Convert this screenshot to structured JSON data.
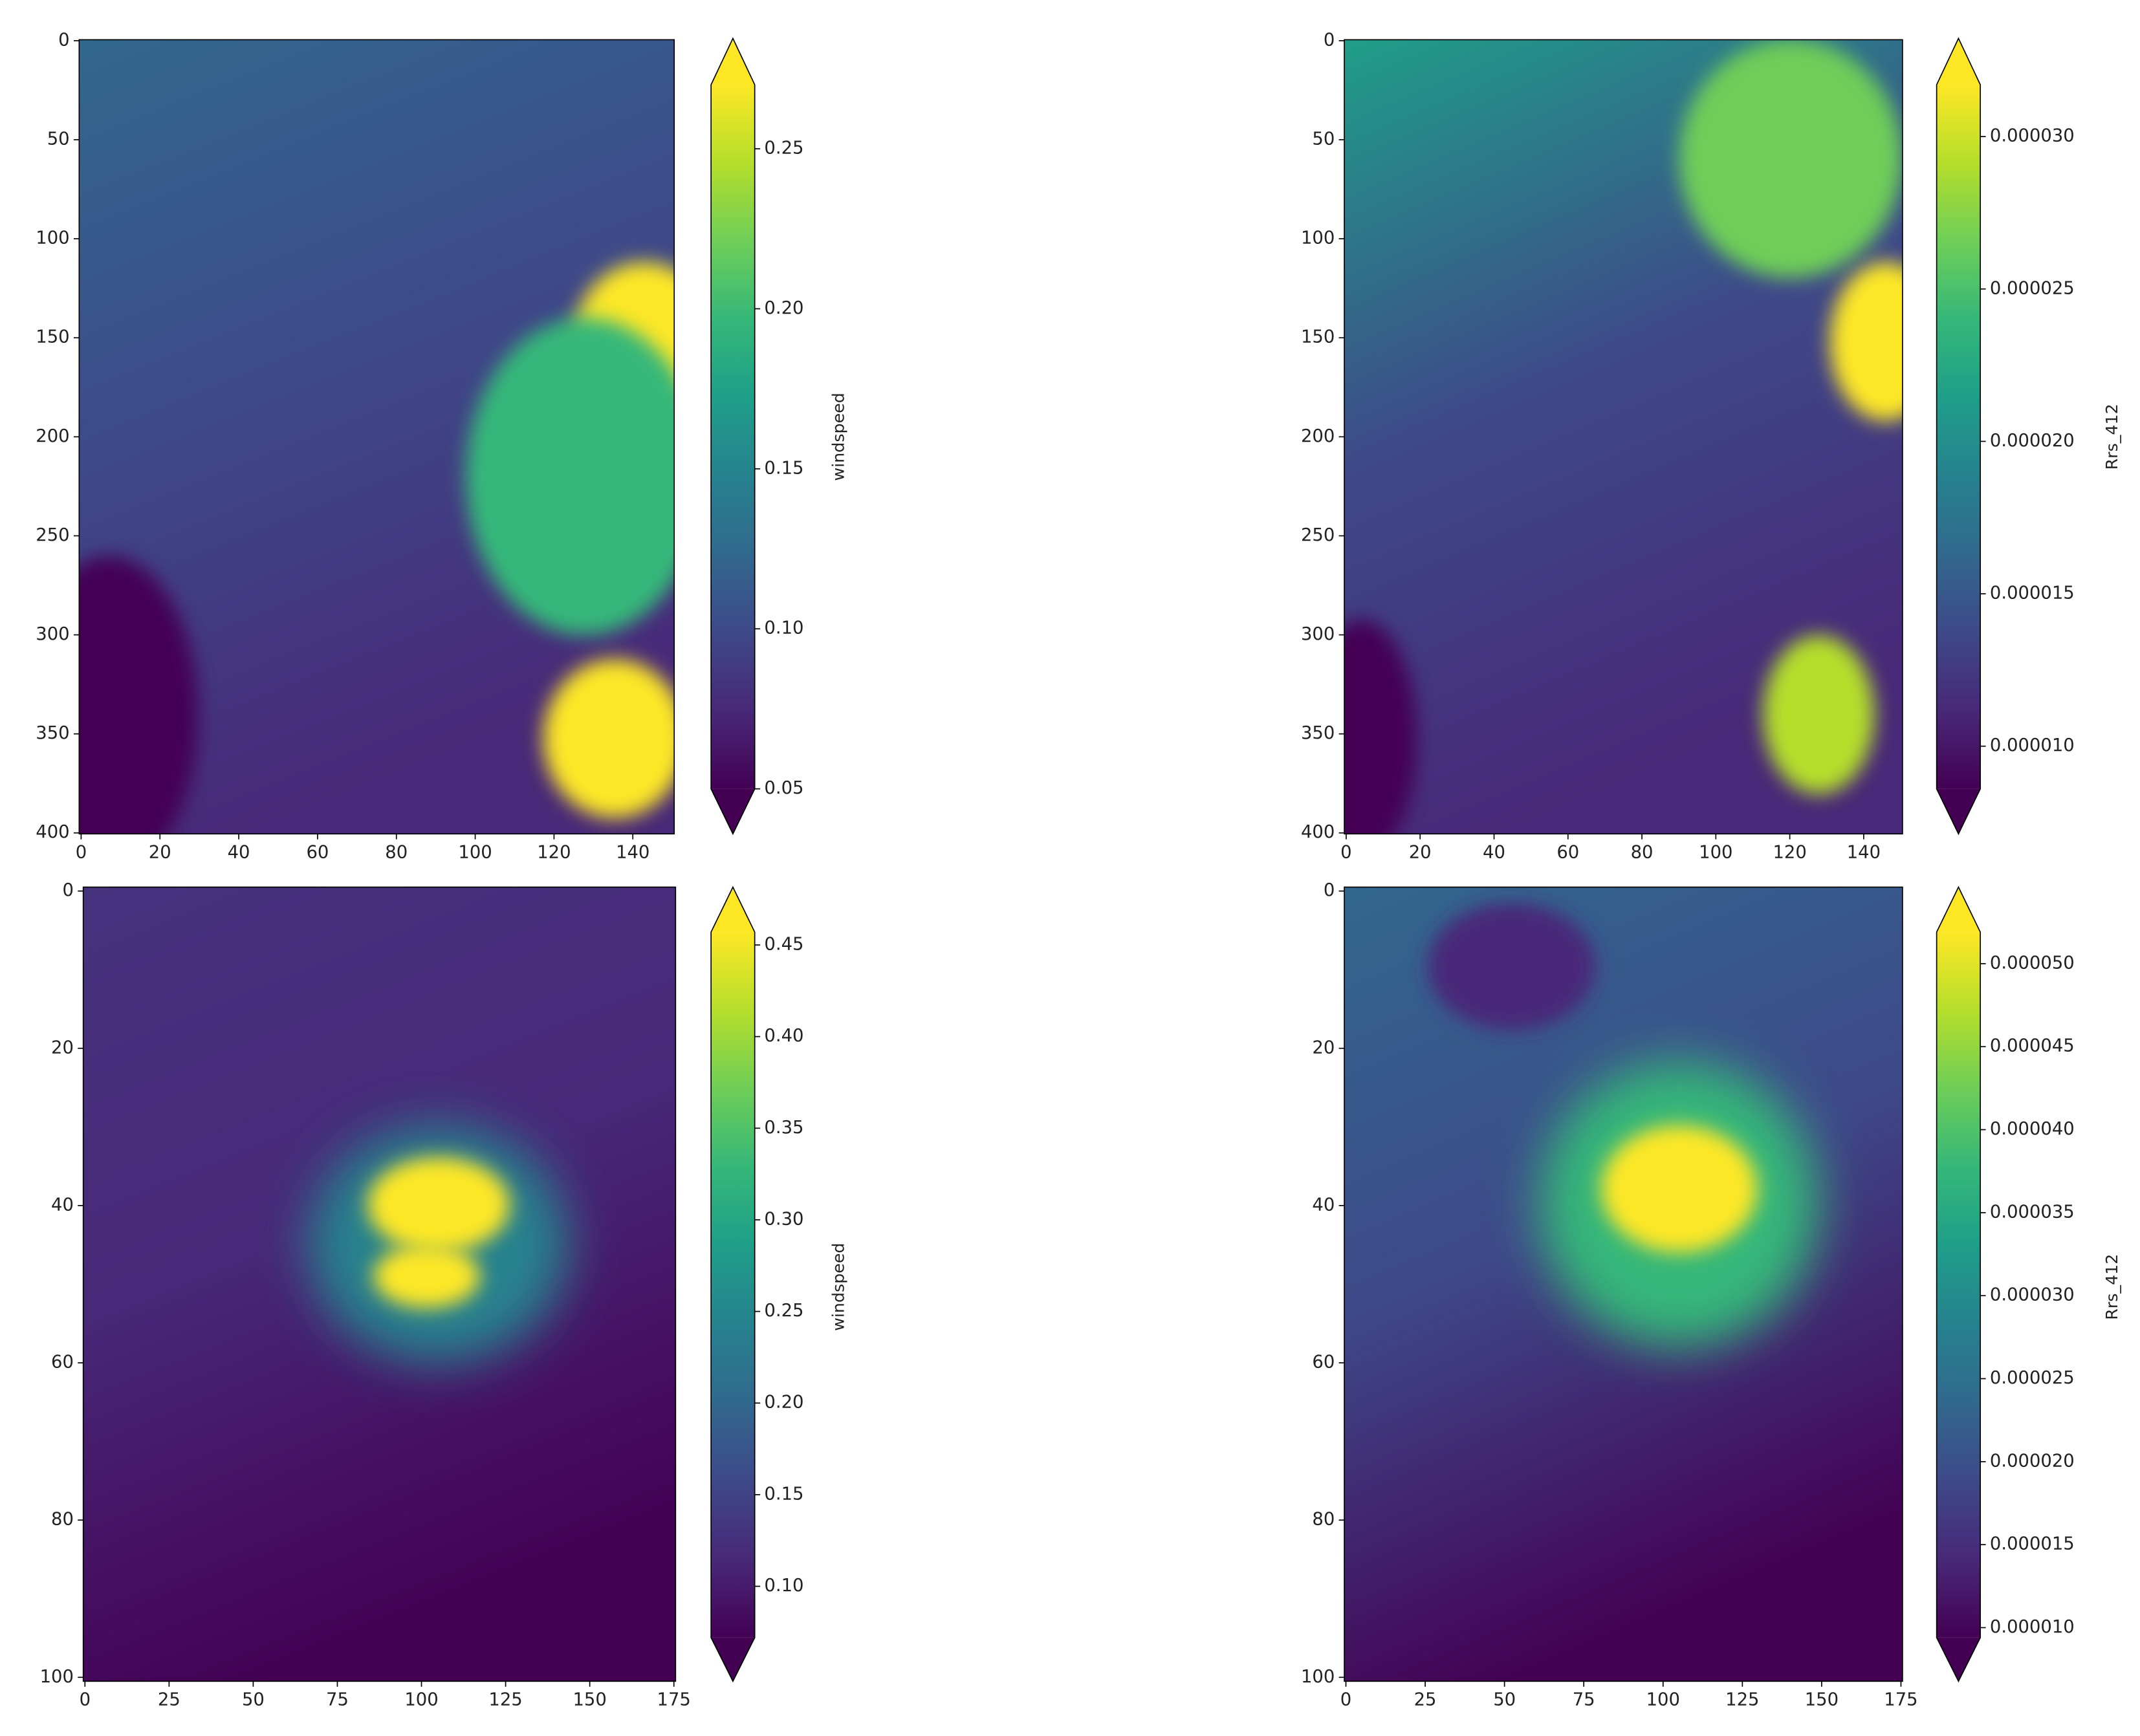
{
  "chart_data": [
    {
      "type": "heatmap",
      "colormap": "viridis",
      "xlim": [
        -0.5,
        150.5
      ],
      "ylim": [
        400.5,
        -0.5
      ],
      "xticks": [
        0,
        20,
        40,
        60,
        80,
        100,
        120,
        140
      ],
      "yticks": [
        0,
        50,
        100,
        150,
        200,
        250,
        300,
        350,
        400
      ],
      "colorbar_label": "windspeed",
      "clim": [
        0.05,
        0.27
      ],
      "cticks": [
        0.05,
        {
          "value": 0.1,
          "label": "0.10"
        },
        0.15,
        {
          "value": 0.2,
          "label": "0.20"
        },
        0.25
      ]
    },
    {
      "type": "heatmap",
      "colormap": "viridis",
      "xlim": [
        -0.5,
        150.5
      ],
      "ylim": [
        400.5,
        -0.5
      ],
      "xticks": [
        0,
        20,
        40,
        60,
        80,
        100,
        120,
        140
      ],
      "yticks": [
        0,
        50,
        100,
        150,
        200,
        250,
        300,
        350,
        400
      ],
      "colorbar_label": "Rrs_412",
      "clim": [
        8.6e-06,
        3.17e-05
      ],
      "cticks": [
        {
          "value": 1e-05,
          "label": "0.000010"
        },
        {
          "value": 1.5e-05,
          "label": "0.000015"
        },
        {
          "value": 2e-05,
          "label": "0.000020"
        },
        {
          "value": 2.5e-05,
          "label": "0.000025"
        },
        {
          "value": 3e-05,
          "label": "0.000030"
        }
      ]
    },
    {
      "type": "heatmap",
      "colormap": "viridis",
      "xlim": [
        -0.5,
        175.5
      ],
      "ylim": [
        100.5,
        -0.5
      ],
      "xticks": [
        0,
        25,
        50,
        75,
        100,
        125,
        150,
        175
      ],
      "yticks": [
        0,
        20,
        40,
        60,
        80,
        100
      ],
      "colorbar_label": "windspeed",
      "clim": [
        0.072,
        0.457
      ],
      "cticks": [
        {
          "value": 0.1,
          "label": "0.10"
        },
        0.15,
        {
          "value": 0.2,
          "label": "0.20"
        },
        0.25,
        {
          "value": 0.3,
          "label": "0.30"
        },
        0.35,
        {
          "value": 0.4,
          "label": "0.40"
        },
        0.45
      ]
    },
    {
      "type": "heatmap",
      "colormap": "viridis",
      "xlim": [
        -0.5,
        175.5
      ],
      "ylim": [
        100.5,
        -0.5
      ],
      "xticks": [
        0,
        25,
        50,
        75,
        100,
        125,
        150,
        175
      ],
      "yticks": [
        0,
        20,
        40,
        60,
        80,
        100
      ],
      "colorbar_label": "Rrs_412",
      "clim": [
        9.4e-06,
        5.19e-05
      ],
      "cticks": [
        {
          "value": 1e-05,
          "label": "0.000010"
        },
        {
          "value": 1.5e-05,
          "label": "0.000015"
        },
        {
          "value": 2e-05,
          "label": "0.000020"
        },
        {
          "value": 2.5e-05,
          "label": "0.000025"
        },
        {
          "value": 3e-05,
          "label": "0.000030"
        },
        {
          "value": 3.5e-05,
          "label": "0.000035"
        },
        {
          "value": 4e-05,
          "label": "0.000040"
        },
        {
          "value": 4.5e-05,
          "label": "0.000045"
        },
        {
          "value": 5e-05,
          "label": "0.000050"
        }
      ]
    }
  ]
}
